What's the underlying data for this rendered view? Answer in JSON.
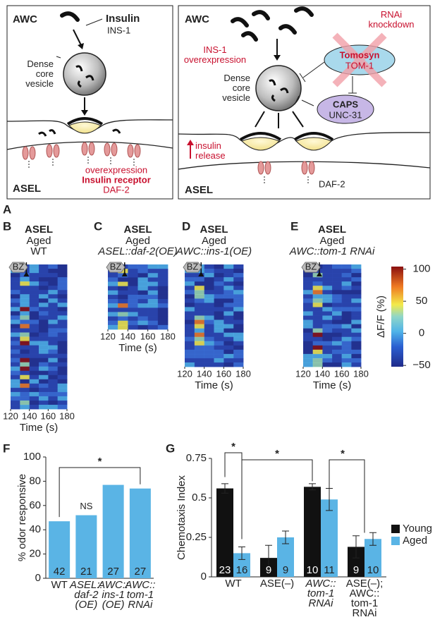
{
  "labels": {
    "a": "A",
    "b": "B",
    "c": "C",
    "d": "D",
    "e": "E",
    "f": "F",
    "g": "G"
  },
  "panel_a": {
    "left": {
      "top_cell": "AWC",
      "insulin": "Insulin",
      "insulin_gene": "INS-1",
      "vesicle": "Dense\ncore\nvesicle",
      "receptor_note": "overexpression",
      "receptor": "Insulin receptor",
      "receptor_gene": "DAF-2",
      "bottom_cell": "ASEL"
    },
    "right": {
      "top_cell": "AWC",
      "ins_note": "INS-1\noverexpression",
      "rnai": "RNAi\nknockdown",
      "tomosyn": "Tomosyn",
      "tomosyn_gene": "TOM-1",
      "caps": "CAPS",
      "caps_gene": "UNC-31",
      "vesicle": "Dense\ncore\nvesicle",
      "release": "insulin\nrelease",
      "receptor_gene": "DAF-2",
      "bottom_cell": "ASEL"
    }
  },
  "heatmaps": [
    {
      "neuron": "ASEL",
      "age": "Aged",
      "genotype": "WT",
      "stimulus": "BZ",
      "xlim": [
        120,
        180
      ],
      "xticks": [
        120,
        140,
        160,
        180
      ],
      "xlabel": "Time (s)"
    },
    {
      "neuron": "ASEL",
      "age": "Aged",
      "genotype": "ASEL::daf-2(OE)",
      "stimulus": "BZ",
      "xlim": [
        120,
        180
      ],
      "xticks": [
        120,
        140,
        160,
        180
      ],
      "xlabel": "Time (s)"
    },
    {
      "neuron": "ASEL",
      "age": "Aged",
      "genotype": "AWC::ins-1(OE)",
      "stimulus": "BZ",
      "xlim": [
        120,
        180
      ],
      "xticks": [
        120,
        140,
        160,
        180
      ],
      "xlabel": "Time (s)"
    },
    {
      "neuron": "ASEL",
      "age": "Aged",
      "genotype": "AWC::tom-1 RNAi",
      "stimulus": "BZ",
      "xlim": [
        120,
        180
      ],
      "xticks": [
        120,
        140,
        160,
        180
      ],
      "xlabel": "Time (s)"
    }
  ],
  "colorbar": {
    "label": "ΔF/F (%)",
    "lim": [
      -52,
      104
    ],
    "ticks": [
      100,
      50,
      0,
      {
        "value": -50,
        "label": "−50"
      }
    ]
  },
  "chart_data": [
    {
      "type": "bar",
      "ylabel": "% odor responsive",
      "categories": [
        "WT",
        "ASEL::\ndaf-2\n(OE)",
        "AWC::\nins-1\n(OE)",
        "AWC::\ntom-1\nRNAi"
      ],
      "values": [
        47,
        52,
        77,
        74
      ],
      "counts": [
        42,
        21,
        27,
        27
      ],
      "color": "#5ab4e5",
      "ylim": [
        0,
        100
      ],
      "yticks": [
        0,
        20,
        40,
        60,
        80,
        100
      ],
      "annotations": [
        "NS",
        "*"
      ]
    },
    {
      "type": "grouped_bar",
      "ylabel": "Chemotaxis Index",
      "categories": [
        "WT",
        "ASE(–)",
        "AWC::\ntom-1\nRNAi",
        "ASE(–);\nAWC::\ntom-1\nRNAi"
      ],
      "series": [
        {
          "name": "Young",
          "color": "#111111",
          "values": [
            0.56,
            0.12,
            0.57,
            0.19
          ],
          "errors": [
            0.03,
            0.08,
            0.02,
            0.07
          ],
          "counts": [
            23,
            9,
            10,
            9
          ]
        },
        {
          "name": "Aged",
          "color": "#5ab4e5",
          "values": [
            0.15,
            0.25,
            0.49,
            0.24
          ],
          "errors": [
            0.04,
            0.04,
            0.07,
            0.04
          ],
          "counts": [
            16,
            9,
            11,
            10
          ]
        }
      ],
      "ylim": [
        0,
        0.75
      ],
      "yticks": [
        0,
        0.25,
        0.5,
        0.75
      ],
      "legend": "right",
      "annotations": [
        "*",
        "*",
        "*"
      ]
    }
  ]
}
